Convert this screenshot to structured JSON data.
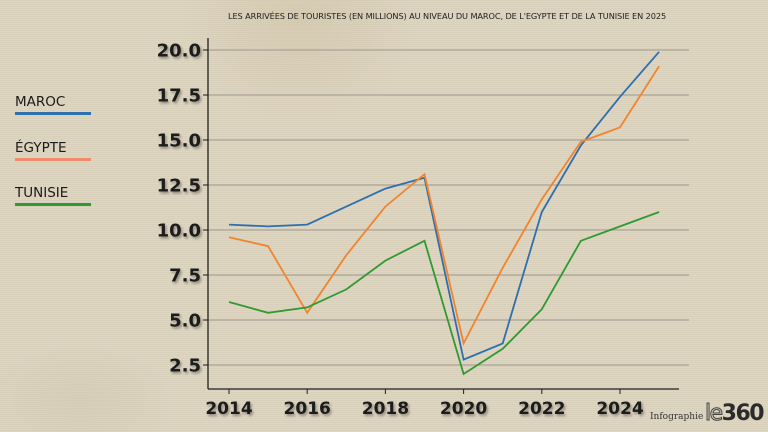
{
  "chart_data": {
    "type": "line",
    "title": "LES ARRIVÉES DE TOURISTES (EN MILLIONS) AU NIVEAU DU MAROC, DE L'EGYPTE ET DE LA TUNISIE EN 2025",
    "xlabel": "",
    "ylabel": "",
    "x": [
      2014,
      2015,
      2016,
      2017,
      2018,
      2019,
      2020,
      2021,
      2022,
      2023,
      2024,
      2025
    ],
    "x_tick_labels": [
      "2014",
      "2016",
      "2018",
      "2020",
      "2022",
      "2024"
    ],
    "x_ticks": [
      2014,
      2016,
      2018,
      2020,
      2022,
      2024
    ],
    "y_tick_labels": [
      "2.5",
      "5.0",
      "7.5",
      "10.0",
      "12.5",
      "15.0",
      "17.5",
      "20.0"
    ],
    "y_ticks": [
      2.5,
      5.0,
      7.5,
      10.0,
      12.5,
      15.0,
      17.5,
      20.0
    ],
    "xlim": [
      2013.5,
      2026.3
    ],
    "ylim": [
      1.1,
      20.0
    ],
    "grid": "horizontal",
    "legend_position": "left",
    "series": [
      {
        "name": "MAROC",
        "color": "#2e6fad",
        "values": [
          10.3,
          10.2,
          10.3,
          11.3,
          12.3,
          12.9,
          2.8,
          3.7,
          11.0,
          14.7,
          17.4,
          19.9
        ]
      },
      {
        "name": "ÉGYPTE",
        "color": "#f2842d",
        "values": [
          9.6,
          9.1,
          5.4,
          8.6,
          11.3,
          13.1,
          3.7,
          7.9,
          11.7,
          14.9,
          15.7,
          19.1
        ]
      },
      {
        "name": "TUNISIE",
        "color": "#2f9a2f",
        "values": [
          6.0,
          5.4,
          5.7,
          6.7,
          8.3,
          9.4,
          2.0,
          3.4,
          5.6,
          9.4,
          10.2,
          11.0
        ]
      }
    ]
  },
  "legend": [
    {
      "label": "MAROC",
      "color": "#2e6fad"
    },
    {
      "label": "ÉGYPTE",
      "color": "#f08a6a"
    },
    {
      "label": "TUNISIE",
      "color": "#2f9a2f"
    }
  ],
  "footer": {
    "credit": "Infographie",
    "logo_prefix": "le",
    "logo_number": "360"
  }
}
